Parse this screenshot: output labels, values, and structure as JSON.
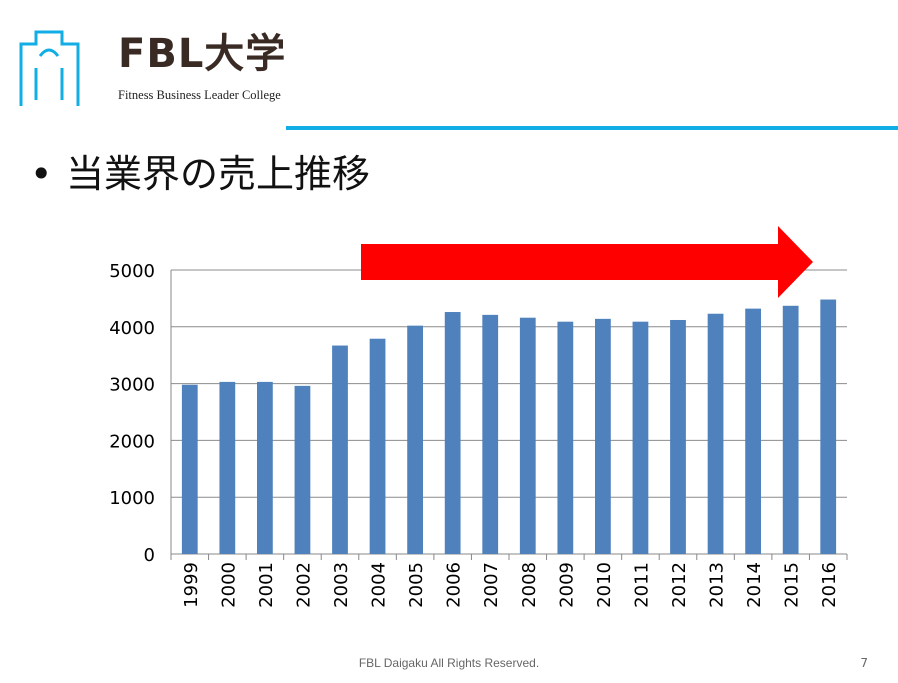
{
  "header": {
    "logo_text": "FBL大学",
    "logo_subtitle": "Fitness Business Leader College",
    "brand_color": "#11aee6"
  },
  "slide": {
    "bullet": "•",
    "title": "当業界の売上推移"
  },
  "chart_data": {
    "type": "bar",
    "categories": [
      "1999",
      "2000",
      "2001",
      "2002",
      "2003",
      "2004",
      "2005",
      "2006",
      "2007",
      "2008",
      "2009",
      "2010",
      "2011",
      "2012",
      "2013",
      "2014",
      "2015",
      "2016"
    ],
    "values": [
      2980,
      3030,
      3030,
      2960,
      3670,
      3790,
      4020,
      4260,
      4210,
      4160,
      4090,
      4140,
      4090,
      4120,
      4230,
      4320,
      4370,
      4480
    ],
    "ylim": [
      0,
      5000
    ],
    "yticks": [
      0,
      1000,
      2000,
      3000,
      4000,
      5000
    ],
    "grid": true,
    "bar_color": "#4f81bd",
    "annotation": {
      "type": "arrow",
      "color": "#ff0000",
      "direction": "right"
    }
  },
  "footer": {
    "copyright": "FBL Daigaku All Rights Reserved.",
    "page_number": "7"
  }
}
